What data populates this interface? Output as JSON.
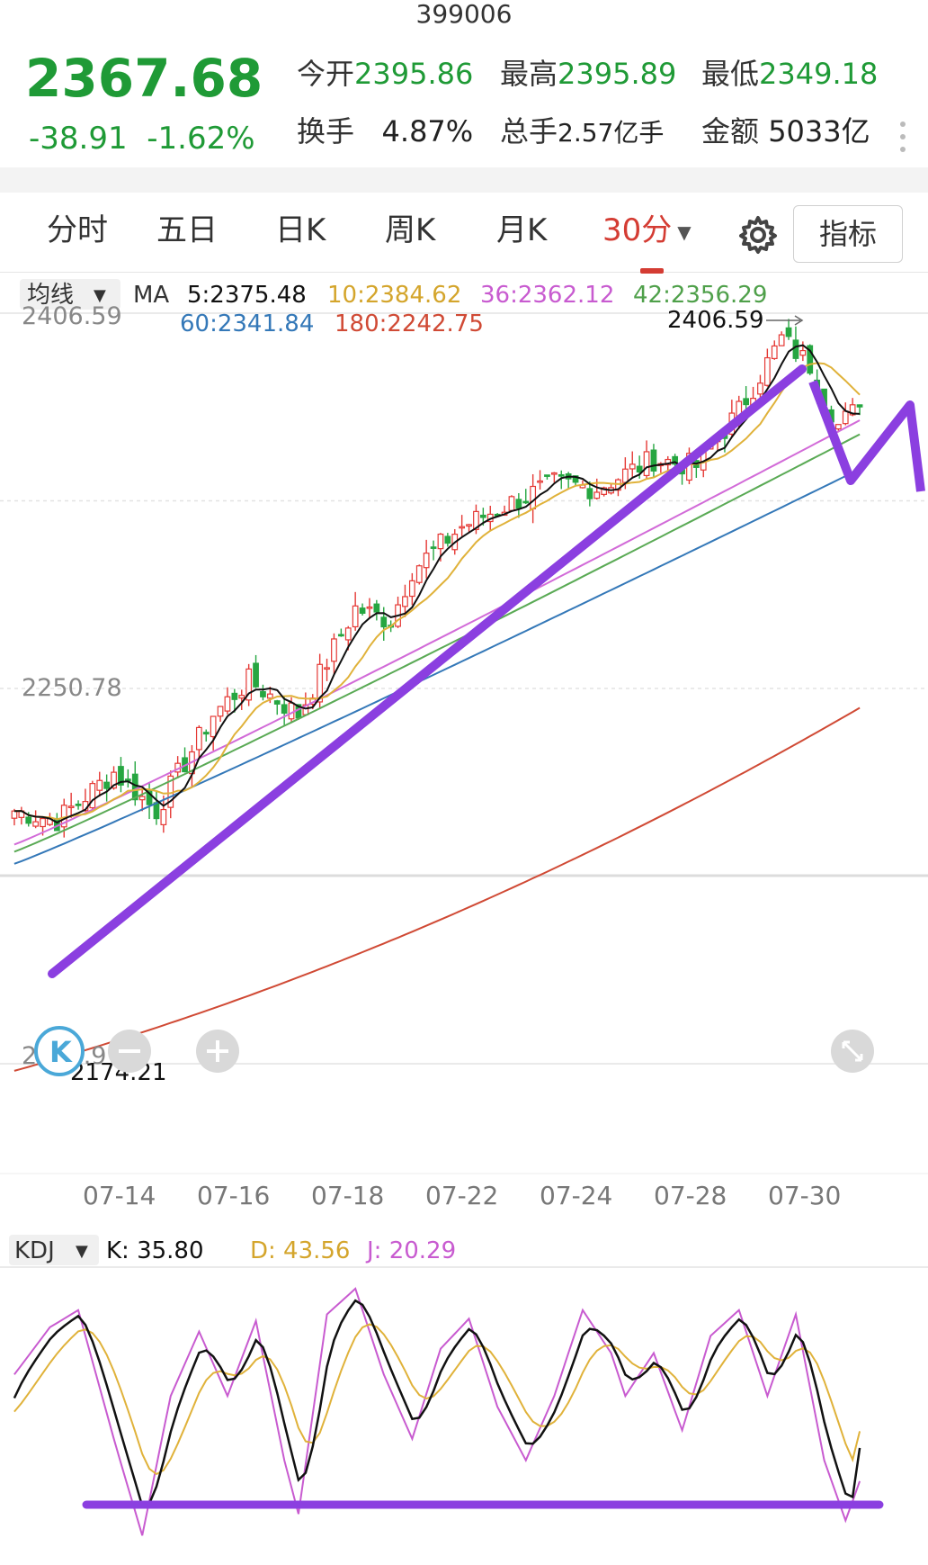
{
  "header": {
    "code": "399006"
  },
  "quote": {
    "price": "2367.68",
    "change": "-38.91",
    "change_pct": "-1.62%",
    "open_label": "今开",
    "open": "2395.86",
    "high_label": "最高",
    "high": "2395.89",
    "low_label": "最低",
    "low": "2349.18",
    "turnover_label": "换手",
    "turnover": "4.87%",
    "volume_label": "总手",
    "volume": "2.57亿手",
    "amount_label": "金额",
    "amount": "5033亿"
  },
  "tabs": [
    {
      "label": "分时"
    },
    {
      "label": "五日"
    },
    {
      "label": "日K"
    },
    {
      "label": "周K"
    },
    {
      "label": "月K"
    },
    {
      "label": "30分"
    }
  ],
  "indicator_button": "指标",
  "ma_header": {
    "selector": "均线",
    "prefix": "MA",
    "ma5": "5:2375.48",
    "ma10": "10:2384.62",
    "ma36": "36:2362.12",
    "ma42": "42:2356.29",
    "ma60": "60:2341.84",
    "ma180": "180:2242.75"
  },
  "kdj_header": {
    "selector": "KDJ",
    "k": "K: 35.80",
    "d": "D: 43.56",
    "j": "J: 20.29"
  },
  "colors": {
    "up": "#e53935",
    "down": "#26a641",
    "ma5": "#111111",
    "ma10": "#e0b23a",
    "ma36": "#d26bd8",
    "ma42": "#5aaa55",
    "ma60": "#3478b8",
    "ma180": "#d04a35",
    "annotation": "#8b3fe0",
    "kdj_k": "#111111",
    "kdj_d": "#e0b23a",
    "kdj_j": "#c85bd0"
  },
  "chart_data": [
    {
      "type": "candlestick",
      "y_axis_labels": {
        "top": "2406.59",
        "middle": "2250.78",
        "bottom": "2094.97"
      },
      "ylim": [
        2094.97,
        2406.59
      ],
      "x_labels": [
        "07-14",
        "07-16",
        "07-18",
        "07-22",
        "07-24",
        "07-28",
        "07-30"
      ],
      "max_marker": "2406.59",
      "min_marker": "2174.21",
      "n_bars": 120,
      "close_keypoints": [
        [
          0,
          2200
        ],
        [
          6,
          2196
        ],
        [
          14,
          2216
        ],
        [
          20,
          2200
        ],
        [
          28,
          2240
        ],
        [
          33,
          2254
        ],
        [
          40,
          2240
        ],
        [
          48,
          2284
        ],
        [
          53,
          2279
        ],
        [
          56,
          2300
        ],
        [
          63,
          2318
        ],
        [
          70,
          2328
        ],
        [
          76,
          2336
        ],
        [
          82,
          2334
        ],
        [
          90,
          2346
        ],
        [
          96,
          2343
        ],
        [
          102,
          2366
        ],
        [
          108,
          2396
        ],
        [
          112,
          2385
        ],
        [
          116,
          2360
        ],
        [
          119,
          2367.68
        ]
      ],
      "moving_averages": [
        {
          "name": "MA5",
          "last": 2375.48
        },
        {
          "name": "MA10",
          "last": 2384.62
        },
        {
          "name": "MA36",
          "last": 2362.12
        },
        {
          "name": "MA42",
          "last": 2356.29
        },
        {
          "name": "MA60",
          "last": 2341.84
        },
        {
          "name": "MA180",
          "last": 2242.75
        }
      ]
    },
    {
      "type": "line",
      "ylim": [
        -15,
        115
      ],
      "series": [
        {
          "name": "K",
          "last": 35.8
        },
        {
          "name": "D",
          "last": 43.56
        },
        {
          "name": "J",
          "last": 20.29
        }
      ],
      "j_keypoints": [
        [
          0,
          70
        ],
        [
          5,
          92
        ],
        [
          9,
          100
        ],
        [
          14,
          40
        ],
        [
          18,
          -5
        ],
        [
          22,
          60
        ],
        [
          26,
          90
        ],
        [
          30,
          60
        ],
        [
          34,
          95
        ],
        [
          38,
          30
        ],
        [
          40,
          5
        ],
        [
          44,
          98
        ],
        [
          48,
          110
        ],
        [
          52,
          70
        ],
        [
          56,
          40
        ],
        [
          60,
          82
        ],
        [
          64,
          96
        ],
        [
          68,
          55
        ],
        [
          72,
          30
        ],
        [
          76,
          60
        ],
        [
          80,
          100
        ],
        [
          84,
          80
        ],
        [
          86,
          60
        ],
        [
          90,
          80
        ],
        [
          94,
          44
        ],
        [
          98,
          88
        ],
        [
          102,
          100
        ],
        [
          106,
          60
        ],
        [
          110,
          98
        ],
        [
          114,
          30
        ],
        [
          117,
          2
        ],
        [
          119,
          20
        ]
      ]
    }
  ]
}
